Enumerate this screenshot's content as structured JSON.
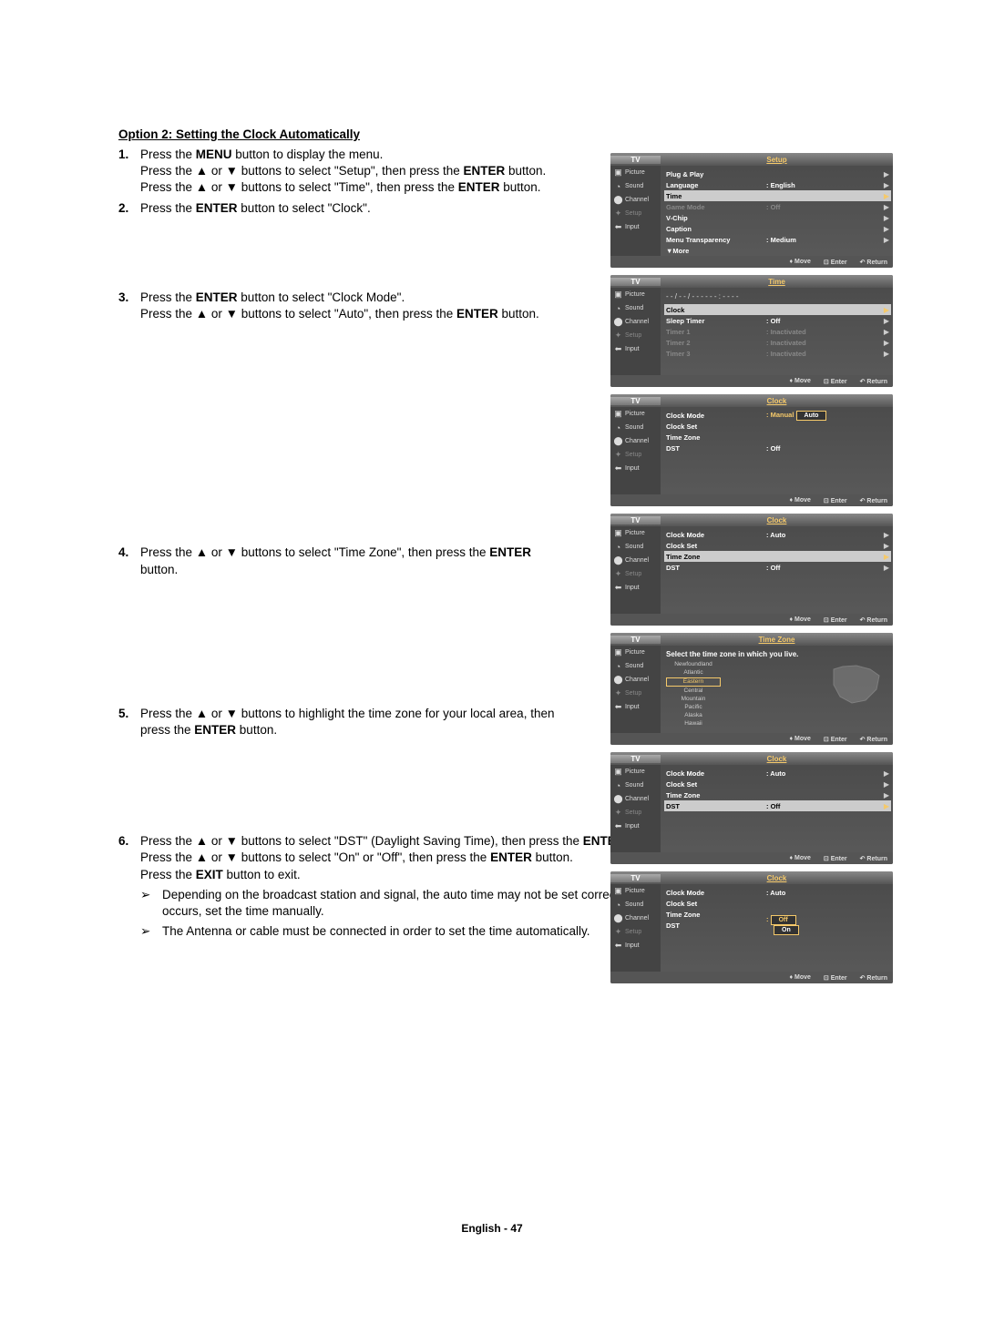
{
  "heading": "Option 2: Setting the Clock Automatically",
  "steps": [
    {
      "num": "1.",
      "lines": [
        "Press the <b>MENU</b> button to display the menu.",
        "Press the ▲ or ▼ buttons to select \"Setup\", then press the <b>ENTER</b> button.",
        "Press the ▲ or ▼ buttons to select \"Time\", then press the <b>ENTER</b> button."
      ]
    },
    {
      "num": "2.",
      "lines": [
        "Press the <b>ENTER</b> button to select \"Clock\"."
      ]
    },
    {
      "num": "3.",
      "lines": [
        "Press the <b>ENTER</b> button to select \"Clock Mode\".",
        "Press the ▲ or ▼ buttons to select \"Auto\", then press the <b>ENTER</b> button."
      ]
    },
    {
      "num": "4.",
      "lines": [
        "Press the ▲ or ▼ buttons to select \"Time Zone\", then press the <b>ENTER</b> button."
      ]
    },
    {
      "num": "5.",
      "lines": [
        "Press the ▲ or ▼ buttons to highlight the time zone for your local area, then press the <b>ENTER</b> button."
      ]
    },
    {
      "num": "6.",
      "lines": [
        "Press the ▲ or ▼ buttons to select \"DST\" (Daylight Saving Time), then press the <b>ENTER</b> button.",
        "Press the ▲ or ▼ buttons to select \"On\" or \"Off\", then press the <b>ENTER</b> button.",
        "Press the <b>EXIT</b> button to exit."
      ]
    }
  ],
  "notes": [
    "Depending on the broadcast station and signal, the auto time may not be set correctly. If this occurs, set the time manually.",
    "The Antenna or cable must be connected in order to set the time automatically."
  ],
  "footer_label": "English - 47",
  "sidebar_labels": {
    "tv": "TV",
    "picture": "Picture",
    "sound": "Sound",
    "channel": "Channel",
    "setup": "Setup",
    "input": "Input"
  },
  "osd_footer": {
    "move": "Move",
    "enter": "Enter",
    "return": "Return"
  },
  "osd1": {
    "title": "Setup",
    "rows": [
      {
        "label": "Plug & Play",
        "value": "",
        "arrow": true
      },
      {
        "label": "Language",
        "value": ": English",
        "arrow": true
      },
      {
        "label": "Time",
        "value": "",
        "highlight": true,
        "arrow": true
      },
      {
        "label": "Game Mode",
        "value": ": Off",
        "dim": true,
        "arrow": true
      },
      {
        "label": "V-Chip",
        "value": "",
        "arrow": true
      },
      {
        "label": "Caption",
        "value": "",
        "arrow": true
      },
      {
        "label": "Menu Transparency",
        "value": ": Medium",
        "arrow": true
      },
      {
        "label": "▼More",
        "value": ""
      }
    ]
  },
  "osd2": {
    "title": "Time",
    "time_text": "- - / - - / - - - -    - - : - -   - -",
    "rows": [
      {
        "label": "Clock",
        "value": "",
        "highlight": true,
        "arrow": true
      },
      {
        "label": "Sleep Timer",
        "value": ": Off",
        "arrow": true
      },
      {
        "label": "Timer 1",
        "value": ": Inactivated",
        "dim": true,
        "arrow": true
      },
      {
        "label": "Timer 2",
        "value": ": Inactivated",
        "dim": true,
        "arrow": true
      },
      {
        "label": "Timer 3",
        "value": ": Inactivated",
        "dim": true,
        "arrow": true
      }
    ]
  },
  "osd3": {
    "title": "Clock",
    "rows": [
      {
        "label": "Clock Mode",
        "value_yellow": ": Manual",
        "value_box": "Auto"
      },
      {
        "label": "Clock Set"
      },
      {
        "label": "Time Zone"
      },
      {
        "label": "DST",
        "value": ": Off"
      }
    ]
  },
  "osd4": {
    "title": "Clock",
    "rows": [
      {
        "label": "Clock Mode",
        "value": ": Auto",
        "arrow": true
      },
      {
        "label": "Clock Set",
        "value": "",
        "arrow": true
      },
      {
        "label": "Time Zone",
        "value": "",
        "highlight": true,
        "arrow": true
      },
      {
        "label": "DST",
        "value": ": Off",
        "arrow": true
      }
    ]
  },
  "osd5": {
    "title": "Time Zone",
    "heading": "Select the time zone in which you live.",
    "zones": [
      "Newfoundland",
      "Atlantic",
      "Eastern",
      "Central",
      "Mountain",
      "Pacific",
      "Alaska",
      "Hawaii"
    ],
    "selected": 2
  },
  "osd6": {
    "title": "Clock",
    "rows": [
      {
        "label": "Clock Mode",
        "value": ": Auto",
        "arrow": true
      },
      {
        "label": "Clock Set",
        "value": "",
        "arrow": true
      },
      {
        "label": "Time Zone",
        "value": "",
        "arrow": true
      },
      {
        "label": "DST",
        "value": ": Off",
        "highlight": true,
        "arrow": true
      }
    ]
  },
  "osd7": {
    "title": "Clock",
    "rows": [
      {
        "label": "Clock Mode",
        "value": ": Auto"
      },
      {
        "label": "Clock Set"
      },
      {
        "label": "Time Zone"
      },
      {
        "label": "DST",
        "value_yellow": ":",
        "value_box_sel": "Off",
        "value_box2": "On"
      }
    ]
  }
}
